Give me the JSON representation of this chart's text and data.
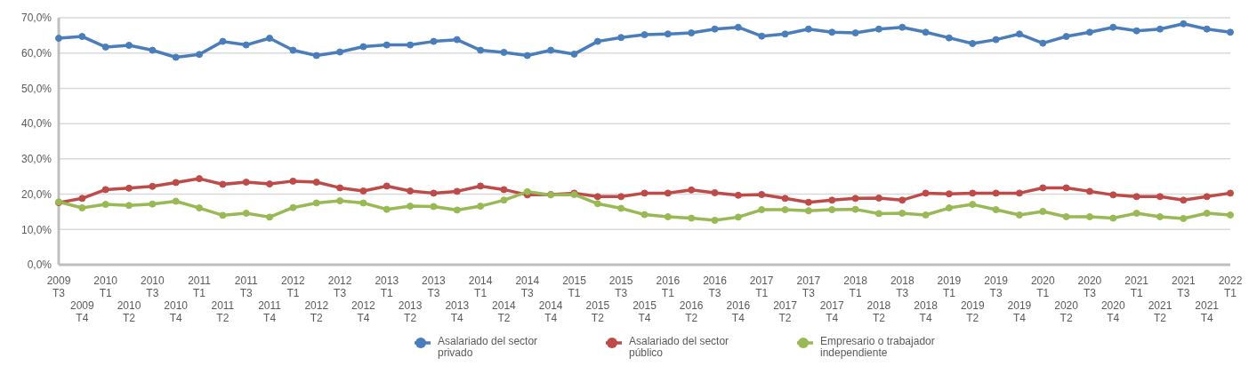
{
  "chart_data": {
    "type": "line",
    "categories": [
      "2009 T3",
      "2009 T4",
      "2010 T1",
      "2010 T2",
      "2010 T3",
      "2010 T4",
      "2011 T1",
      "2011 T2",
      "2011 T3",
      "2011 T4",
      "2012 T1",
      "2012 T2",
      "2012 T3",
      "2012 T4",
      "2013 T1",
      "2013 T2",
      "2013 T3",
      "2013 T4",
      "2014 T1",
      "2014 T2",
      "2014 T3",
      "2014 T4",
      "2015 T1",
      "2015 T2",
      "2015 T3",
      "2015 T4",
      "2016 T1",
      "2016 T2",
      "2016 T3",
      "2016 T4",
      "2017 T1",
      "2017 T2",
      "2017 T3",
      "2017 T4",
      "2018 T1",
      "2018 T2",
      "2018 T3",
      "2018 T4",
      "2019 T1",
      "2019 T2",
      "2019 T3",
      "2019 T4",
      "2020 T1",
      "2020 T2",
      "2020 T3",
      "2020 T4",
      "2021 T1",
      "2021 T2",
      "2021 T3",
      "2021 T4",
      "2022 T1"
    ],
    "series": [
      {
        "name": "Asalariado del sector privado",
        "color": "#4a7ebb",
        "values": [
          64.2,
          64.7,
          61.7,
          62.2,
          60.8,
          58.8,
          59.6,
          63.3,
          62.3,
          64.2,
          60.8,
          59.3,
          60.3,
          61.8,
          62.3,
          62.3,
          63.3,
          63.8,
          60.8,
          60.2,
          59.3,
          60.8,
          59.7,
          63.3,
          64.4,
          65.2,
          65.4,
          65.7,
          66.8,
          67.3,
          64.8,
          65.4,
          66.8,
          65.9,
          65.7,
          66.8,
          67.3,
          65.9,
          64.3,
          62.7,
          63.8,
          65.4,
          62.8,
          64.7,
          65.9,
          67.3,
          66.3,
          66.8,
          68.3,
          66.8,
          65.9
        ]
      },
      {
        "name": "Asalariado del sector público",
        "color": "#be4b48",
        "values": [
          17.6,
          18.8,
          21.3,
          21.7,
          22.2,
          23.3,
          24.4,
          22.8,
          23.4,
          22.9,
          23.7,
          23.4,
          21.8,
          20.9,
          22.3,
          20.9,
          20.3,
          20.8,
          22.3,
          21.3,
          19.8,
          19.9,
          20.3,
          19.3,
          19.3,
          20.3,
          20.3,
          21.2,
          20.4,
          19.7,
          19.9,
          18.8,
          17.7,
          18.3,
          18.8,
          18.9,
          18.3,
          20.3,
          20.1,
          20.3,
          20.3,
          20.3,
          21.8,
          21.8,
          20.8,
          19.8,
          19.3,
          19.3,
          18.3,
          19.3,
          20.3
        ]
      },
      {
        "name": "Empresario o trabajador independiente",
        "color": "#98b954",
        "values": [
          17.8,
          16.1,
          17.1,
          16.8,
          17.2,
          18.0,
          16.1,
          14.0,
          14.6,
          13.5,
          16.2,
          17.5,
          18.1,
          17.5,
          15.7,
          16.6,
          16.5,
          15.5,
          16.6,
          18.3,
          20.7,
          19.8,
          19.9,
          17.3,
          16.0,
          14.2,
          13.6,
          13.2,
          12.6,
          13.5,
          15.6,
          15.6,
          15.3,
          15.6,
          15.7,
          14.5,
          14.6,
          14.1,
          16.1,
          17.1,
          15.6,
          14.1,
          15.1,
          13.6,
          13.6,
          13.2,
          14.6,
          13.6,
          13.1,
          14.6,
          14.1
        ]
      }
    ],
    "ylim": [
      0,
      70
    ],
    "yticks": [
      {
        "value": 0,
        "label": "0,0%"
      },
      {
        "value": 10,
        "label": "10,0%"
      },
      {
        "value": 20,
        "label": "20,0%"
      },
      {
        "value": 30,
        "label": "30,0%"
      },
      {
        "value": 40,
        "label": "40,0%"
      },
      {
        "value": 50,
        "label": "50,0%"
      },
      {
        "value": 60,
        "label": "60,0%"
      },
      {
        "value": 70,
        "label": "70,0%"
      }
    ],
    "grid": "y",
    "legend": "bottom",
    "marker": "circle",
    "line_style": "solid"
  }
}
